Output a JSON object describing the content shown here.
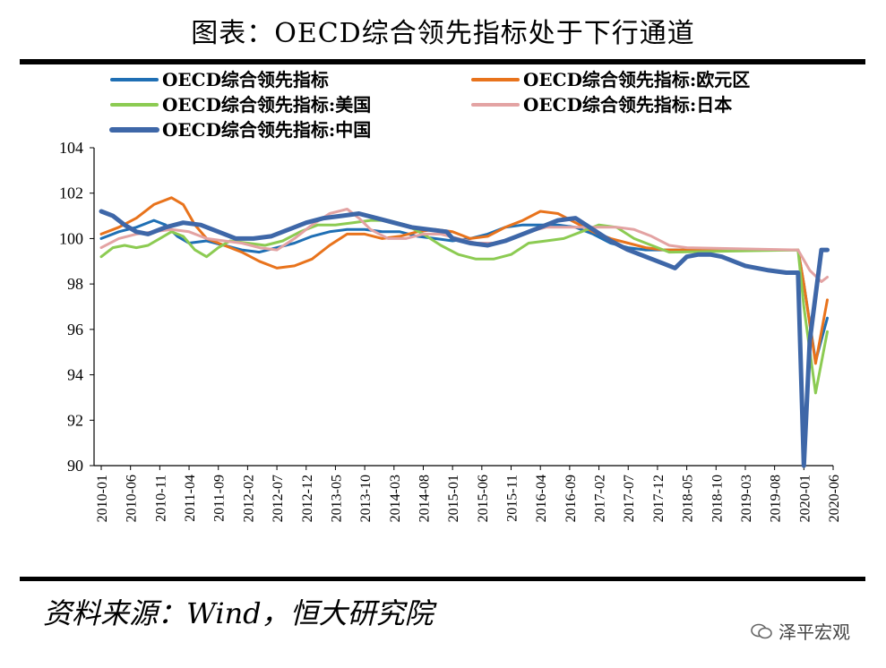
{
  "title": "图表：OECD综合领先指标处于下行通道",
  "source": "资料来源：Wind，恒大研究院",
  "watermark": "泽平宏观",
  "chart_data": {
    "type": "line",
    "xlabel": "",
    "ylabel": "",
    "ylim": [
      90,
      104
    ],
    "yticks": [
      "90",
      "92",
      "94",
      "96",
      "98",
      "100",
      "102",
      "104"
    ],
    "xticks": [
      "2010-01",
      "2010-06",
      "2010-11",
      "2011-04",
      "2011-09",
      "2012-02",
      "2012-07",
      "2012-12",
      "2013-05",
      "2013-10",
      "2014-03",
      "2014-08",
      "2015-01",
      "2015-06",
      "2015-11",
      "2016-04",
      "2016-09",
      "2017-02",
      "2017-07",
      "2017-12",
      "2018-05",
      "2018-10",
      "2019-03",
      "2019-08",
      "2020-01",
      "2020-06"
    ],
    "legend_position": "top",
    "series": [
      {
        "name": "OECD综合领先指标",
        "color": "#1F6FB4",
        "width": 3,
        "points": [
          [
            0,
            100.0
          ],
          [
            3,
            100.3
          ],
          [
            6,
            100.5
          ],
          [
            9,
            100.8
          ],
          [
            11,
            100.6
          ],
          [
            13,
            100.1
          ],
          [
            15,
            99.8
          ],
          [
            18,
            99.9
          ],
          [
            21,
            99.7
          ],
          [
            24,
            99.5
          ],
          [
            27,
            99.4
          ],
          [
            30,
            99.6
          ],
          [
            33,
            99.8
          ],
          [
            36,
            100.1
          ],
          [
            39,
            100.3
          ],
          [
            42,
            100.4
          ],
          [
            45,
            100.4
          ],
          [
            48,
            100.3
          ],
          [
            51,
            100.3
          ],
          [
            54,
            100.1
          ],
          [
            57,
            100.0
          ],
          [
            60,
            99.9
          ],
          [
            63,
            100.0
          ],
          [
            66,
            100.2
          ],
          [
            69,
            100.5
          ],
          [
            72,
            100.6
          ],
          [
            75,
            100.6
          ],
          [
            78,
            100.6
          ],
          [
            81,
            100.5
          ],
          [
            84,
            100.2
          ],
          [
            87,
            99.8
          ],
          [
            90,
            99.6
          ],
          [
            93,
            99.5
          ],
          [
            96,
            99.5
          ],
          [
            119,
            99.5
          ],
          [
            120,
            98.0
          ],
          [
            122,
            94.6
          ],
          [
            124,
            96.5
          ]
        ]
      },
      {
        "name": "OECD综合领先指标:欧元区",
        "color": "#E8731C",
        "width": 3,
        "points": [
          [
            0,
            100.2
          ],
          [
            3,
            100.5
          ],
          [
            6,
            100.9
          ],
          [
            9,
            101.5
          ],
          [
            12,
            101.8
          ],
          [
            14,
            101.5
          ],
          [
            16,
            100.6
          ],
          [
            18,
            100.0
          ],
          [
            21,
            99.7
          ],
          [
            24,
            99.4
          ],
          [
            27,
            99.0
          ],
          [
            30,
            98.7
          ],
          [
            33,
            98.8
          ],
          [
            36,
            99.1
          ],
          [
            39,
            99.7
          ],
          [
            42,
            100.2
          ],
          [
            45,
            100.2
          ],
          [
            48,
            100.0
          ],
          [
            51,
            100.1
          ],
          [
            54,
            100.3
          ],
          [
            57,
            100.4
          ],
          [
            60,
            100.3
          ],
          [
            63,
            100.0
          ],
          [
            66,
            100.1
          ],
          [
            69,
            100.5
          ],
          [
            72,
            100.8
          ],
          [
            75,
            101.2
          ],
          [
            78,
            101.1
          ],
          [
            81,
            100.7
          ],
          [
            84,
            100.3
          ],
          [
            87,
            100.0
          ],
          [
            90,
            99.8
          ],
          [
            93,
            99.6
          ],
          [
            96,
            99.5
          ],
          [
            119,
            99.5
          ],
          [
            120,
            98.0
          ],
          [
            122,
            94.5
          ],
          [
            124,
            97.3
          ]
        ]
      },
      {
        "name": "OECD综合领先指标:美国",
        "color": "#8CCB52",
        "width": 3,
        "points": [
          [
            0,
            99.2
          ],
          [
            2,
            99.6
          ],
          [
            4,
            99.7
          ],
          [
            6,
            99.6
          ],
          [
            8,
            99.7
          ],
          [
            10,
            100.0
          ],
          [
            12,
            100.3
          ],
          [
            14,
            100.1
          ],
          [
            16,
            99.5
          ],
          [
            18,
            99.2
          ],
          [
            20,
            99.6
          ],
          [
            22,
            99.9
          ],
          [
            25,
            99.8
          ],
          [
            28,
            99.7
          ],
          [
            31,
            99.9
          ],
          [
            34,
            100.3
          ],
          [
            37,
            100.6
          ],
          [
            40,
            100.6
          ],
          [
            43,
            100.7
          ],
          [
            46,
            100.8
          ],
          [
            49,
            100.8
          ],
          [
            52,
            100.6
          ],
          [
            55,
            100.2
          ],
          [
            58,
            99.7
          ],
          [
            61,
            99.3
          ],
          [
            64,
            99.1
          ],
          [
            67,
            99.1
          ],
          [
            70,
            99.3
          ],
          [
            73,
            99.8
          ],
          [
            76,
            99.9
          ],
          [
            79,
            100.0
          ],
          [
            82,
            100.3
          ],
          [
            85,
            100.6
          ],
          [
            88,
            100.5
          ],
          [
            91,
            100.0
          ],
          [
            94,
            99.7
          ],
          [
            97,
            99.4
          ],
          [
            119,
            99.5
          ],
          [
            120,
            97.0
          ],
          [
            122,
            93.2
          ],
          [
            124,
            95.9
          ]
        ]
      },
      {
        "name": "OECD综合领先指标:日本",
        "color": "#E3A3A3",
        "width": 3,
        "points": [
          [
            0,
            99.6
          ],
          [
            3,
            100.0
          ],
          [
            6,
            100.2
          ],
          [
            9,
            100.3
          ],
          [
            12,
            100.4
          ],
          [
            15,
            100.3
          ],
          [
            18,
            100.0
          ],
          [
            21,
            99.9
          ],
          [
            24,
            99.8
          ],
          [
            27,
            99.6
          ],
          [
            30,
            99.5
          ],
          [
            33,
            100.0
          ],
          [
            36,
            100.6
          ],
          [
            39,
            101.1
          ],
          [
            42,
            101.3
          ],
          [
            44,
            100.9
          ],
          [
            46,
            100.4
          ],
          [
            49,
            100.0
          ],
          [
            52,
            100.0
          ],
          [
            55,
            100.2
          ],
          [
            58,
            100.2
          ],
          [
            61,
            100.0
          ],
          [
            64,
            99.8
          ],
          [
            67,
            99.8
          ],
          [
            70,
            100.0
          ],
          [
            73,
            100.3
          ],
          [
            76,
            100.5
          ],
          [
            79,
            100.5
          ],
          [
            82,
            100.5
          ],
          [
            85,
            100.5
          ],
          [
            88,
            100.5
          ],
          [
            91,
            100.4
          ],
          [
            94,
            100.1
          ],
          [
            97,
            99.7
          ],
          [
            100,
            99.6
          ],
          [
            119,
            99.5
          ],
          [
            121,
            98.6
          ],
          [
            123,
            98.1
          ],
          [
            124,
            98.3
          ]
        ]
      },
      {
        "name": "OECD综合领先指标:中国",
        "color": "#3E67A8",
        "width": 5,
        "points": [
          [
            0,
            101.2
          ],
          [
            2,
            101.0
          ],
          [
            4,
            100.6
          ],
          [
            6,
            100.3
          ],
          [
            8,
            100.2
          ],
          [
            11,
            100.5
          ],
          [
            14,
            100.7
          ],
          [
            17,
            100.6
          ],
          [
            20,
            100.3
          ],
          [
            23,
            100.0
          ],
          [
            26,
            100.0
          ],
          [
            29,
            100.1
          ],
          [
            32,
            100.4
          ],
          [
            35,
            100.7
          ],
          [
            38,
            100.9
          ],
          [
            41,
            101.0
          ],
          [
            44,
            101.1
          ],
          [
            47,
            100.9
          ],
          [
            50,
            100.7
          ],
          [
            53,
            100.5
          ],
          [
            56,
            100.4
          ],
          [
            59,
            100.3
          ],
          [
            60,
            100.0
          ],
          [
            63,
            99.8
          ],
          [
            66,
            99.7
          ],
          [
            69,
            99.9
          ],
          [
            72,
            100.2
          ],
          [
            75,
            100.5
          ],
          [
            78,
            100.8
          ],
          [
            81,
            100.9
          ],
          [
            84,
            100.4
          ],
          [
            87,
            99.9
          ],
          [
            90,
            99.5
          ],
          [
            93,
            99.2
          ],
          [
            96,
            98.9
          ],
          [
            98,
            98.7
          ],
          [
            100,
            99.2
          ],
          [
            102,
            99.3
          ],
          [
            104,
            99.3
          ],
          [
            106,
            99.2
          ],
          [
            108,
            99.0
          ],
          [
            110,
            98.8
          ],
          [
            112,
            98.7
          ],
          [
            114,
            98.6
          ],
          [
            117,
            98.5
          ],
          [
            118,
            98.5
          ],
          [
            119,
            98.5
          ],
          [
            120,
            90.0
          ],
          [
            121,
            95.5
          ],
          [
            123,
            99.5
          ],
          [
            124,
            99.5
          ]
        ]
      }
    ]
  }
}
